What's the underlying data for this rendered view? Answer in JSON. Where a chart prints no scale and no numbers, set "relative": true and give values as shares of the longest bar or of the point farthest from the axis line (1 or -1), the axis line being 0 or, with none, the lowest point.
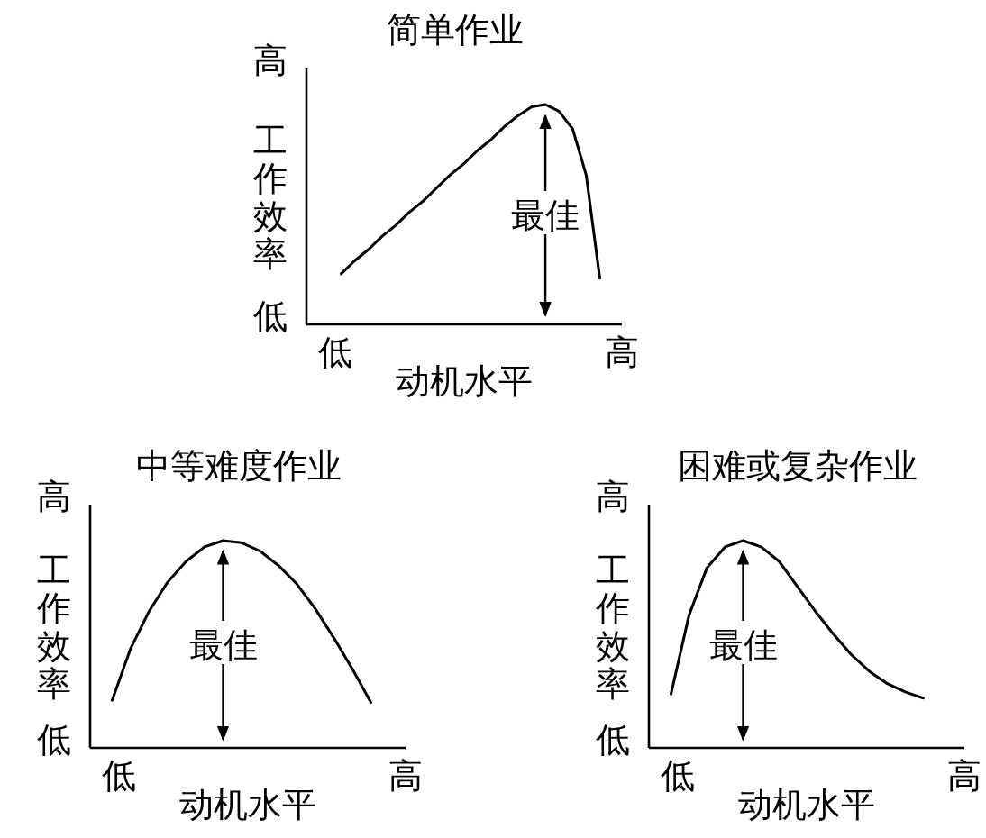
{
  "chart_data": [
    {
      "type": "line",
      "title": "简单作业",
      "xlabel": "动机水平",
      "ylabel": "工作效率",
      "relative": true,
      "color": "#000000",
      "line_style": "solid",
      "categories": [
        null,
        null,
        null,
        null,
        null,
        null,
        null,
        null,
        null,
        null,
        null,
        null,
        null,
        null,
        null,
        null,
        null,
        null,
        null,
        null
      ],
      "values": [
        0.23,
        0.29,
        0.34,
        0.4,
        0.45,
        0.51,
        0.56,
        0.62,
        0.68,
        0.73,
        0.79,
        0.84,
        0.9,
        0.95,
        0.99,
        1.0,
        0.97,
        0.89,
        0.68,
        0.21
      ],
      "annotations": [
        "低",
        "高",
        "低",
        "高",
        "最佳"
      ]
    },
    {
      "type": "line",
      "title": "中等难度作业",
      "xlabel": "动机水平",
      "ylabel": "工作效率",
      "relative": true,
      "color": "#000000",
      "line_style": "solid",
      "categories": [
        null,
        null,
        null,
        null,
        null,
        null,
        null,
        null,
        null,
        null,
        null,
        null,
        null,
        null,
        null
      ],
      "values": [
        0.23,
        0.48,
        0.66,
        0.8,
        0.9,
        0.97,
        1.0,
        0.99,
        0.95,
        0.88,
        0.79,
        0.67,
        0.53,
        0.38,
        0.22
      ],
      "annotations": [
        "低",
        "高",
        "低",
        "高",
        "最佳"
      ]
    },
    {
      "type": "line",
      "title": "困难或复杂作业",
      "xlabel": "动机水平",
      "ylabel": "工作效率",
      "relative": true,
      "color": "#000000",
      "line_style": "solid",
      "categories": [
        null,
        null,
        null,
        null,
        null,
        null,
        null,
        null,
        null,
        null,
        null,
        null,
        null,
        null,
        null
      ],
      "values": [
        0.26,
        0.64,
        0.87,
        0.97,
        1.0,
        0.97,
        0.9,
        0.78,
        0.66,
        0.55,
        0.45,
        0.37,
        0.31,
        0.27,
        0.24
      ],
      "annotations": [
        "低",
        "高",
        "低",
        "高",
        "最佳"
      ]
    }
  ]
}
